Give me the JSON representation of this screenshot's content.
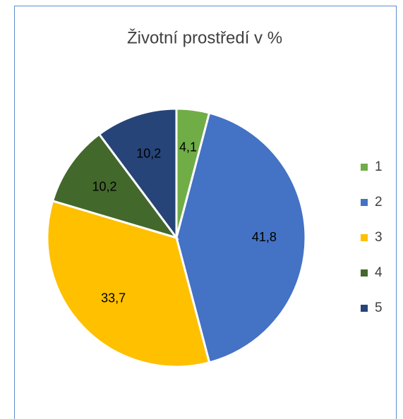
{
  "chart_data": {
    "type": "pie",
    "title": "Životní prostředí v %",
    "categories": [
      "1",
      "2",
      "3",
      "4",
      "5"
    ],
    "values": [
      4.1,
      41.8,
      33.7,
      10.2,
      10.2
    ],
    "value_labels": [
      "4,1",
      "41,8",
      "33,7",
      "10,2",
      "10,2"
    ],
    "colors": [
      "#70ad47",
      "#4472c4",
      "#ffc000",
      "#43682b",
      "#264478"
    ],
    "legend": "right"
  }
}
